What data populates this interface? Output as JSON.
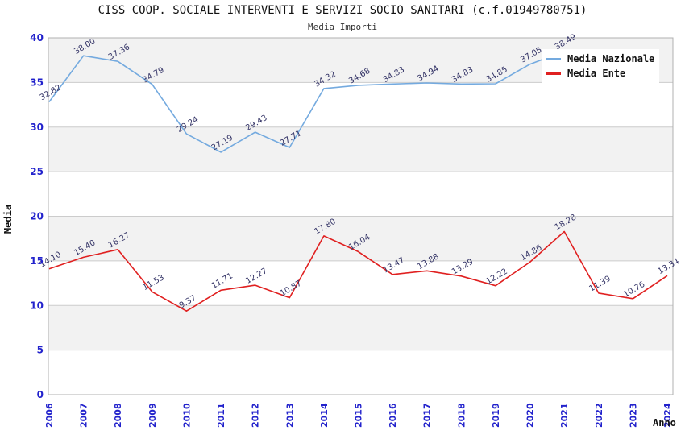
{
  "title": "CISS COOP. SOCIALE INTERVENTI E SERVIZI SOCIO SANITARI (c.f.01949780751)",
  "subtitle": "Media Importi",
  "legend": {
    "items": [
      {
        "label": "Media Nazionale",
        "color": "#74aadf"
      },
      {
        "label": "Media Ente",
        "color": "#e02020"
      }
    ]
  },
  "axes": {
    "y_label": "Media",
    "x_label": "Anno",
    "y_ticks": [
      "0",
      "5",
      "10",
      "15",
      "20",
      "25",
      "30",
      "35",
      "40"
    ],
    "tick_color": "#2222cc"
  },
  "chart_data": {
    "type": "line",
    "title": "CISS COOP. SOCIALE INTERVENTI E SERVIZI SOCIO SANITARI (c.f.01949780751)",
    "subtitle": "Media Importi",
    "xlabel": "Anno",
    "ylabel": "Media",
    "ylim": [
      0,
      40
    ],
    "grid_step": 5,
    "legend_position": "top-right",
    "band_color": "#f2f2f2",
    "grid_color": "#cccccc",
    "border_color": "#b0b0b0",
    "data_label_color": "#333366",
    "categories": [
      "2006",
      "2007",
      "2008",
      "2009",
      "2010",
      "2011",
      "2012",
      "2013",
      "2014",
      "2015",
      "2016",
      "2017",
      "2018",
      "2019",
      "2020",
      "2021",
      "2022",
      "2023",
      "2024"
    ],
    "series": [
      {
        "name": "Media Nazionale",
        "color": "#74aadf",
        "values": [
          32.82,
          38.0,
          37.36,
          34.79,
          29.24,
          27.19,
          29.43,
          27.71,
          34.32,
          34.68,
          34.83,
          34.94,
          34.83,
          34.85,
          37.05,
          38.49,
          null,
          null,
          null
        ]
      },
      {
        "name": "Media Ente",
        "color": "#e02020",
        "values": [
          14.1,
          15.4,
          16.27,
          11.53,
          9.37,
          11.71,
          12.27,
          10.87,
          17.8,
          16.04,
          13.47,
          13.88,
          13.29,
          12.22,
          14.86,
          18.28,
          11.39,
          10.76,
          13.34
        ]
      }
    ]
  }
}
